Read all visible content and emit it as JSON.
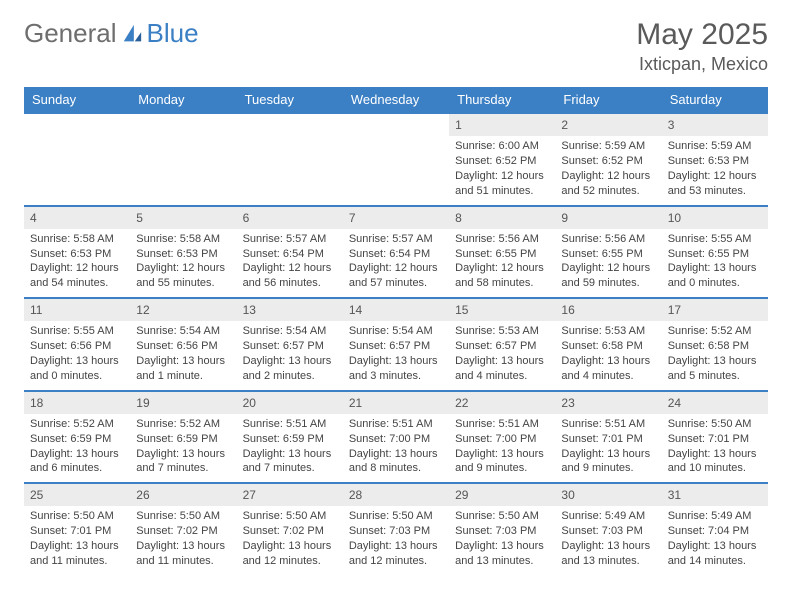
{
  "logo": {
    "part1": "General",
    "part2": "Blue"
  },
  "title": "May 2025",
  "location": "Ixticpan, Mexico",
  "colors": {
    "accent": "#3b7fc4",
    "header_text": "#ffffff",
    "daynum_bg": "#ececec",
    "body_text": "#444444",
    "title_text": "#5a5a5a"
  },
  "weekdays": [
    "Sunday",
    "Monday",
    "Tuesday",
    "Wednesday",
    "Thursday",
    "Friday",
    "Saturday"
  ],
  "weeks": [
    [
      null,
      null,
      null,
      null,
      {
        "n": "1",
        "sr": "6:00 AM",
        "ss": "6:52 PM",
        "dl": "12 hours and 51 minutes."
      },
      {
        "n": "2",
        "sr": "5:59 AM",
        "ss": "6:52 PM",
        "dl": "12 hours and 52 minutes."
      },
      {
        "n": "3",
        "sr": "5:59 AM",
        "ss": "6:53 PM",
        "dl": "12 hours and 53 minutes."
      }
    ],
    [
      {
        "n": "4",
        "sr": "5:58 AM",
        "ss": "6:53 PM",
        "dl": "12 hours and 54 minutes."
      },
      {
        "n": "5",
        "sr": "5:58 AM",
        "ss": "6:53 PM",
        "dl": "12 hours and 55 minutes."
      },
      {
        "n": "6",
        "sr": "5:57 AM",
        "ss": "6:54 PM",
        "dl": "12 hours and 56 minutes."
      },
      {
        "n": "7",
        "sr": "5:57 AM",
        "ss": "6:54 PM",
        "dl": "12 hours and 57 minutes."
      },
      {
        "n": "8",
        "sr": "5:56 AM",
        "ss": "6:55 PM",
        "dl": "12 hours and 58 minutes."
      },
      {
        "n": "9",
        "sr": "5:56 AM",
        "ss": "6:55 PM",
        "dl": "12 hours and 59 minutes."
      },
      {
        "n": "10",
        "sr": "5:55 AM",
        "ss": "6:55 PM",
        "dl": "13 hours and 0 minutes."
      }
    ],
    [
      {
        "n": "11",
        "sr": "5:55 AM",
        "ss": "6:56 PM",
        "dl": "13 hours and 0 minutes."
      },
      {
        "n": "12",
        "sr": "5:54 AM",
        "ss": "6:56 PM",
        "dl": "13 hours and 1 minute."
      },
      {
        "n": "13",
        "sr": "5:54 AM",
        "ss": "6:57 PM",
        "dl": "13 hours and 2 minutes."
      },
      {
        "n": "14",
        "sr": "5:54 AM",
        "ss": "6:57 PM",
        "dl": "13 hours and 3 minutes."
      },
      {
        "n": "15",
        "sr": "5:53 AM",
        "ss": "6:57 PM",
        "dl": "13 hours and 4 minutes."
      },
      {
        "n": "16",
        "sr": "5:53 AM",
        "ss": "6:58 PM",
        "dl": "13 hours and 4 minutes."
      },
      {
        "n": "17",
        "sr": "5:52 AM",
        "ss": "6:58 PM",
        "dl": "13 hours and 5 minutes."
      }
    ],
    [
      {
        "n": "18",
        "sr": "5:52 AM",
        "ss": "6:59 PM",
        "dl": "13 hours and 6 minutes."
      },
      {
        "n": "19",
        "sr": "5:52 AM",
        "ss": "6:59 PM",
        "dl": "13 hours and 7 minutes."
      },
      {
        "n": "20",
        "sr": "5:51 AM",
        "ss": "6:59 PM",
        "dl": "13 hours and 7 minutes."
      },
      {
        "n": "21",
        "sr": "5:51 AM",
        "ss": "7:00 PM",
        "dl": "13 hours and 8 minutes."
      },
      {
        "n": "22",
        "sr": "5:51 AM",
        "ss": "7:00 PM",
        "dl": "13 hours and 9 minutes."
      },
      {
        "n": "23",
        "sr": "5:51 AM",
        "ss": "7:01 PM",
        "dl": "13 hours and 9 minutes."
      },
      {
        "n": "24",
        "sr": "5:50 AM",
        "ss": "7:01 PM",
        "dl": "13 hours and 10 minutes."
      }
    ],
    [
      {
        "n": "25",
        "sr": "5:50 AM",
        "ss": "7:01 PM",
        "dl": "13 hours and 11 minutes."
      },
      {
        "n": "26",
        "sr": "5:50 AM",
        "ss": "7:02 PM",
        "dl": "13 hours and 11 minutes."
      },
      {
        "n": "27",
        "sr": "5:50 AM",
        "ss": "7:02 PM",
        "dl": "13 hours and 12 minutes."
      },
      {
        "n": "28",
        "sr": "5:50 AM",
        "ss": "7:03 PM",
        "dl": "13 hours and 12 minutes."
      },
      {
        "n": "29",
        "sr": "5:50 AM",
        "ss": "7:03 PM",
        "dl": "13 hours and 13 minutes."
      },
      {
        "n": "30",
        "sr": "5:49 AM",
        "ss": "7:03 PM",
        "dl": "13 hours and 13 minutes."
      },
      {
        "n": "31",
        "sr": "5:49 AM",
        "ss": "7:04 PM",
        "dl": "13 hours and 14 minutes."
      }
    ]
  ],
  "labels": {
    "sunrise": "Sunrise:",
    "sunset": "Sunset:",
    "daylight": "Daylight:"
  }
}
